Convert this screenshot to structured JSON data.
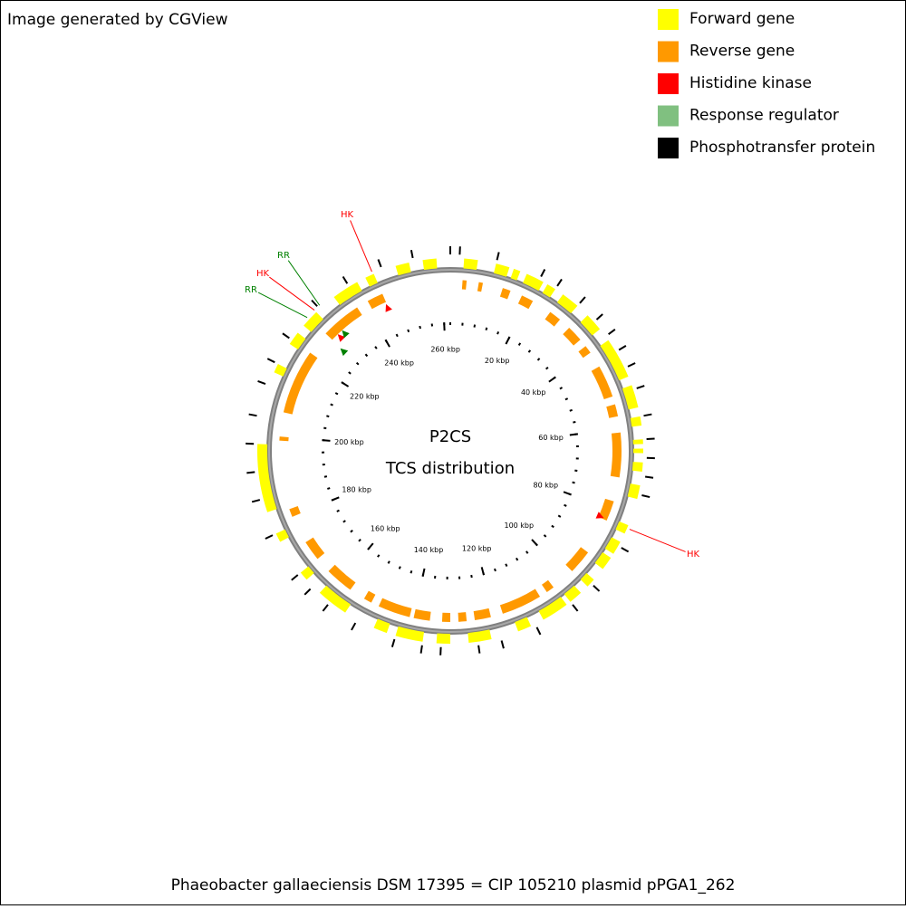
{
  "credit": "Image generated by CGView",
  "center": {
    "title": "P2CS",
    "subtitle": "TCS distribution"
  },
  "footer": "Phaeobacter gallaeciensis DSM 17395 = CIP 105210 plasmid pPGA1_262",
  "legend": [
    {
      "name": "Forward gene",
      "color": "#ffff00"
    },
    {
      "name": "Reverse gene",
      "color": "#ff9900"
    },
    {
      "name": "Histidine kinase",
      "color": "#ff0000"
    },
    {
      "name": "Response regulator",
      "color": "#80c080"
    },
    {
      "name": "Phosphotransfer protein",
      "color": "#000000"
    }
  ],
  "map": {
    "length_kbp": 262,
    "ruler": [
      {
        "value": 20,
        "label": "20 kbp"
      },
      {
        "value": 40,
        "label": "40 kbp"
      },
      {
        "value": 60,
        "label": "60 kbp"
      },
      {
        "value": 80,
        "label": "80 kbp"
      },
      {
        "value": 100,
        "label": "100 kbp"
      },
      {
        "value": 120,
        "label": "120 kbp"
      },
      {
        "value": 140,
        "label": "140 kbp"
      },
      {
        "value": 160,
        "label": "160 kbp"
      },
      {
        "value": 180,
        "label": "180 kbp"
      },
      {
        "value": 200,
        "label": "200 kbp"
      },
      {
        "value": 220,
        "label": "220 kbp"
      },
      {
        "value": 240,
        "label": "240 kbp"
      },
      {
        "value": 260,
        "label": "260 kbp"
      }
    ],
    "forward": [
      [
        3,
        6
      ],
      [
        10,
        13
      ],
      [
        14,
        15.5
      ],
      [
        17,
        21
      ],
      [
        22,
        24
      ],
      [
        26,
        30
      ],
      [
        33,
        37
      ],
      [
        40,
        49
      ],
      [
        51,
        56
      ],
      [
        58,
        60
      ],
      [
        63,
        64
      ],
      [
        65,
        66
      ],
      [
        68,
        70
      ],
      [
        73,
        76
      ],
      [
        82,
        84
      ],
      [
        86,
        89
      ],
      [
        90,
        93
      ],
      [
        96,
        98
      ],
      [
        100,
        103
      ],
      [
        104,
        110
      ],
      [
        113,
        116
      ],
      [
        122,
        127
      ],
      [
        131,
        134
      ],
      [
        137,
        143
      ],
      [
        145,
        148
      ],
      [
        155,
        162
      ],
      [
        166,
        168
      ],
      [
        176,
        178
      ],
      [
        183,
        198
      ],
      [
        214,
        216
      ],
      [
        221,
        224
      ],
      [
        226,
        230
      ],
      [
        235,
        241
      ],
      [
        243,
        245
      ],
      [
        250,
        253
      ],
      [
        256,
        259
      ]
    ],
    "reverse": [
      [
        3,
        4
      ],
      [
        7,
        8
      ],
      [
        13,
        15
      ],
      [
        18,
        21
      ],
      [
        26,
        29
      ],
      [
        32,
        36
      ],
      [
        38,
        40
      ],
      [
        44,
        52
      ],
      [
        54,
        57
      ],
      [
        61,
        72
      ],
      [
        78,
        83
      ],
      [
        92,
        98
      ],
      [
        104,
        106
      ],
      [
        108,
        118
      ],
      [
        121,
        125
      ],
      [
        127,
        129
      ],
      [
        131,
        133
      ],
      [
        136,
        140
      ],
      [
        141,
        149
      ],
      [
        151,
        153
      ],
      [
        157,
        164
      ],
      [
        168,
        173
      ],
      [
        180,
        182
      ],
      [
        199,
        200
      ],
      [
        206,
        222
      ],
      [
        228,
        238
      ],
      [
        241,
        245
      ]
    ],
    "outer_ticks": [
      0,
      2,
      10,
      20,
      24,
      30,
      35,
      39,
      43,
      47,
      52,
      58,
      63,
      67,
      71,
      75,
      87,
      97,
      103,
      112,
      120,
      125,
      133,
      137,
      143,
      152,
      159,
      164,
      168,
      178,
      186,
      192,
      198,
      204,
      211,
      216,
      222,
      231,
      239,
      247,
      254
    ],
    "tcs": [
      {
        "label": "HK",
        "kbp": 244.8,
        "kind": 2
      },
      {
        "label": "HK",
        "kbp": 230,
        "kind": 2
      },
      {
        "label": "RR",
        "kbp": 231.5,
        "kind": 3
      },
      {
        "label": "RR",
        "kbp": 227.8,
        "kind": 3
      },
      {
        "label": "HK",
        "kbp": 82.7,
        "kind": 2
      }
    ]
  }
}
